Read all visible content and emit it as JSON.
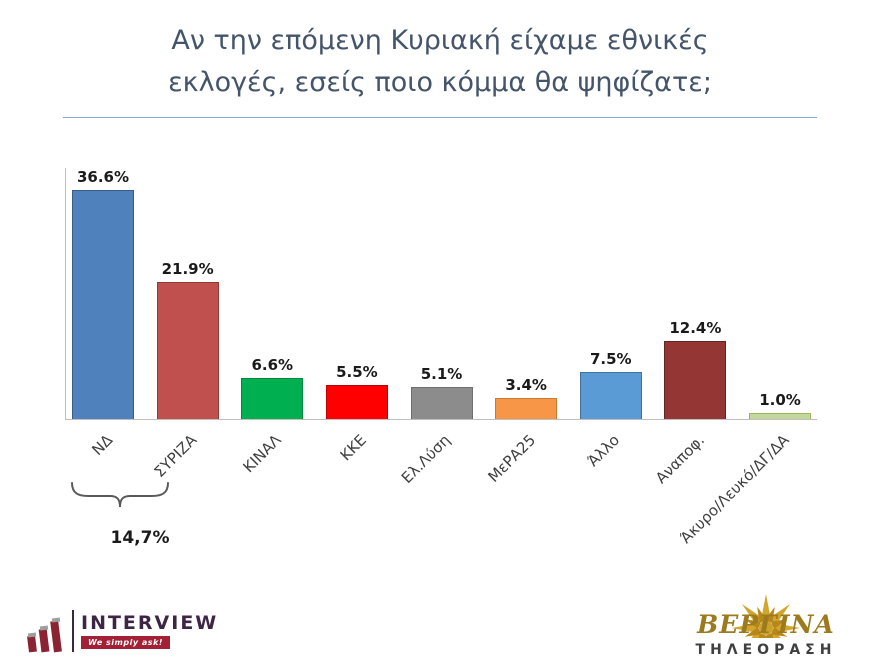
{
  "title": {
    "line1": "Αν την επόμενη Κυριακή είχαμε εθνικές",
    "line2": "εκλογές, εσείς ποιο κόμμα θα ψηφίζατε;"
  },
  "chart_data": {
    "type": "bar",
    "title": "Αν την επόμενη Κυριακή είχαμε εθνικές εκλογές, εσείς ποιο κόμμα θα ψηφίζατε;",
    "categories": [
      "ΝΔ",
      "ΣΥΡΙΖΑ",
      "ΚΙΝΑΛ",
      "ΚΚΕ",
      "Ελ.Λύση",
      "ΜεΡΑ25",
      "Άλλο",
      "Αναποφ.",
      "Άκυρο/Λευκό/ΔΓ/ΔΑ"
    ],
    "values": [
      36.6,
      21.9,
      6.6,
      5.5,
      5.1,
      3.4,
      7.5,
      12.4,
      1.0
    ],
    "value_labels": [
      "36.6%",
      "21.9%",
      "6.6%",
      "5.5%",
      "5.1%",
      "3.4%",
      "7.5%",
      "12.4%",
      "1.0%"
    ],
    "colors": [
      "#4F81BD",
      "#C0504D",
      "#00B050",
      "#FF0000",
      "#8C8C8C",
      "#F79646",
      "#5B9BD5",
      "#943634",
      "#C3D69B"
    ],
    "border_colors": [
      "#385D8A",
      "#953735",
      "#008C40",
      "#C00000",
      "#6E6E6E",
      "#C87B2E",
      "#41719C",
      "#632423",
      "#9BBB59"
    ],
    "ylim": [
      0,
      40
    ],
    "grid": false,
    "legend": "none",
    "xlabel": "",
    "ylabel": "",
    "annotation": {
      "label": "14,7%",
      "span": [
        0,
        1
      ]
    }
  },
  "footer": {
    "interview_logo": {
      "name": "INTERVIEW",
      "tagline": "We simply ask!"
    },
    "vergina_logo": {
      "name": "ΒΕΡΓΙΝΑ",
      "subtitle": "ΤΗΛΕΟΡΑΣΗ"
    }
  }
}
